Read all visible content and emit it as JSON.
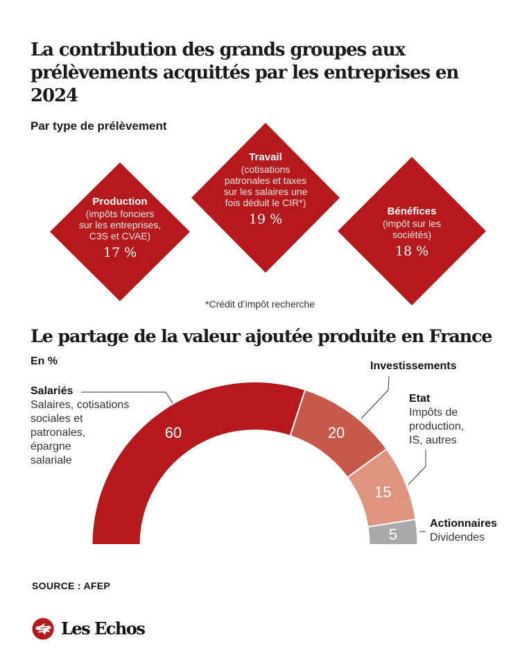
{
  "title": "La contribution des grands groupes aux prélèvements acquittés par les entreprises en 2024",
  "section1": {
    "subtitle": "Par type de prélèvement",
    "diamonds": [
      {
        "name": "Production",
        "description": "(impôts fonciers sur les entreprises, C3S et CVAE)",
        "value": "17 %"
      },
      {
        "name": "Travail",
        "description": "(cotisations patronales et taxes sur les salaires une fois déduit le CIR*)",
        "value": "19 %"
      },
      {
        "name": "Bénéfices",
        "description": "(impôt sur les sociétés)",
        "value": "18 %"
      }
    ],
    "footnote": "*Crédit d’impôt recherche"
  },
  "section2": {
    "title": "Le partage de la valeur ajoutée produite en France",
    "subtitle": "En %"
  },
  "colors": {
    "primary_red": "#b3191d",
    "investissements": "#c7594a",
    "etat": "#dd957f",
    "actionnaires": "#a9a9a9",
    "text": "#1a1a1a"
  },
  "chart_data": {
    "type": "pie",
    "variant": "half-donut",
    "title": "Le partage de la valeur ajoutée produite en France",
    "unit": "%",
    "series": [
      {
        "name": "Salariés",
        "description": "Salaires, cotisations sociales et patronales, épargne salariale",
        "value": 60,
        "color": "#b3191d"
      },
      {
        "name": "Investissements",
        "description": "",
        "value": 20,
        "color": "#c7594a"
      },
      {
        "name": "Etat",
        "description": "Impôts de production, IS, autres",
        "value": 15,
        "color": "#dd957f"
      },
      {
        "name": "Actionnaires",
        "description": "Dividendes",
        "value": 5,
        "color": "#a9a9a9"
      }
    ],
    "labels": {
      "salaries": {
        "name": "Salariés",
        "lines": [
          "Salaires, cotisations",
          "sociales et",
          "patronales,",
          "épargne",
          "salariale"
        ]
      },
      "investissements": {
        "name": "Investissements"
      },
      "etat": {
        "name": "Etat",
        "lines": [
          "Impôts de",
          "production,",
          "IS, autres"
        ]
      },
      "actionnaires": {
        "name": "Actionnaires",
        "lines": [
          "Dividendes"
        ]
      }
    }
  },
  "source": "SOURCE : AFEP",
  "logo": {
    "text": "Les Echos",
    "icon": "les-echos-winged-horse-icon"
  }
}
